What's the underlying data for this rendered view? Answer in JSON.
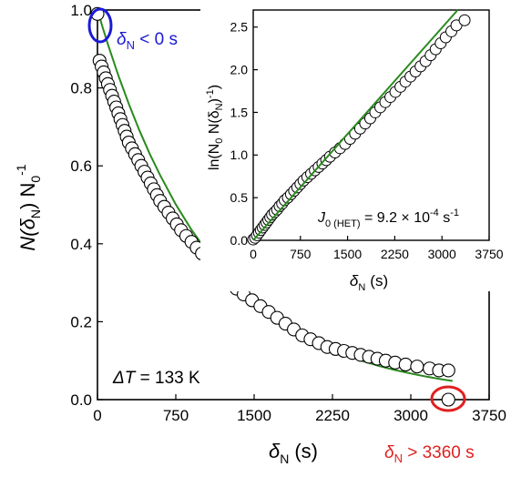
{
  "chart_data": [
    {
      "type": "scatter",
      "role": "main",
      "xlabel_sym": "δ",
      "xlabel_sub": "N",
      "xlabel_unit": "(s)",
      "ylabel_a": "N(δ",
      "ylabel_sub": "N",
      "ylabel_b": ") N",
      "ylabel_sub0": "0",
      "ylabel_sup": "-1",
      "xlim": [
        0,
        3750
      ],
      "ylim": [
        0.0,
        1.0
      ],
      "x_ticks": [
        "0",
        "750",
        "1500",
        "2250",
        "3000",
        "3750"
      ],
      "y_ticks": [
        "0.0",
        "0.2",
        "0.4",
        "0.6",
        "0.8",
        "1.0"
      ],
      "annotation_dt_a": "ΔT",
      "annotation_dt_b": " = 133 K",
      "annotation_left_sym": "δ",
      "annotation_left_sub": "N",
      "annotation_left_rest": " < 0 s",
      "annotation_left_color": "#1a1ad6",
      "annotation_right_sym": "δ",
      "annotation_right_sub": "N",
      "annotation_right_rest": " > 3360 s",
      "annotation_right_color": "#e02020",
      "marker_color": "#000000",
      "fit_color": "#2a8a1e",
      "points": [
        [
          0,
          0.99
        ],
        [
          20,
          0.87
        ],
        [
          40,
          0.855
        ],
        [
          60,
          0.84
        ],
        [
          80,
          0.825
        ],
        [
          100,
          0.81
        ],
        [
          120,
          0.795
        ],
        [
          140,
          0.78
        ],
        [
          160,
          0.765
        ],
        [
          180,
          0.75
        ],
        [
          200,
          0.735
        ],
        [
          220,
          0.72
        ],
        [
          240,
          0.705
        ],
        [
          260,
          0.69
        ],
        [
          280,
          0.675
        ],
        [
          300,
          0.66
        ],
        [
          330,
          0.645
        ],
        [
          360,
          0.63
        ],
        [
          390,
          0.615
        ],
        [
          420,
          0.6
        ],
        [
          450,
          0.585
        ],
        [
          480,
          0.57
        ],
        [
          510,
          0.555
        ],
        [
          540,
          0.54
        ],
        [
          570,
          0.525
        ],
        [
          600,
          0.51
        ],
        [
          640,
          0.495
        ],
        [
          680,
          0.48
        ],
        [
          720,
          0.465
        ],
        [
          760,
          0.45
        ],
        [
          800,
          0.435
        ],
        [
          850,
          0.42
        ],
        [
          900,
          0.405
        ],
        [
          950,
          0.39
        ],
        [
          1000,
          0.375
        ],
        [
          1050,
          0.36
        ],
        [
          1100,
          0.345
        ],
        [
          1150,
          0.33
        ],
        [
          1200,
          0.315
        ],
        [
          1260,
          0.3
        ],
        [
          1330,
          0.285
        ],
        [
          1400,
          0.27
        ],
        [
          1480,
          0.255
        ],
        [
          1560,
          0.24
        ],
        [
          1640,
          0.225
        ],
        [
          1720,
          0.21
        ],
        [
          1800,
          0.195
        ],
        [
          1880,
          0.18
        ],
        [
          1960,
          0.165
        ],
        [
          2040,
          0.155
        ],
        [
          2120,
          0.145
        ],
        [
          2200,
          0.135
        ],
        [
          2280,
          0.13
        ],
        [
          2360,
          0.125
        ],
        [
          2440,
          0.12
        ],
        [
          2520,
          0.115
        ],
        [
          2600,
          0.11
        ],
        [
          2680,
          0.105
        ],
        [
          2760,
          0.1
        ],
        [
          2850,
          0.095
        ],
        [
          2950,
          0.09
        ],
        [
          3060,
          0.085
        ],
        [
          3180,
          0.08
        ],
        [
          3270,
          0.075
        ],
        [
          3360,
          0.075
        ],
        [
          3360,
          0.0
        ]
      ],
      "fit_points": [
        [
          0,
          1.0
        ],
        [
          50,
          0.955
        ],
        [
          100,
          0.912
        ],
        [
          200,
          0.832
        ],
        [
          300,
          0.759
        ],
        [
          400,
          0.692
        ],
        [
          500,
          0.631
        ],
        [
          600,
          0.576
        ],
        [
          750,
          0.501
        ],
        [
          900,
          0.436
        ],
        [
          1050,
          0.38
        ],
        [
          1200,
          0.331
        ],
        [
          1350,
          0.288
        ],
        [
          1500,
          0.251
        ],
        [
          1650,
          0.219
        ],
        [
          1800,
          0.191
        ],
        [
          1950,
          0.167
        ],
        [
          2100,
          0.146
        ],
        [
          2250,
          0.128
        ],
        [
          2400,
          0.112
        ],
        [
          2550,
          0.098
        ],
        [
          2700,
          0.086
        ],
        [
          2850,
          0.076
        ],
        [
          3000,
          0.067
        ],
        [
          3150,
          0.059
        ],
        [
          3300,
          0.052
        ],
        [
          3400,
          0.048
        ]
      ]
    },
    {
      "type": "scatter",
      "role": "inset",
      "xlabel_sym": "δ",
      "xlabel_sub": "N",
      "xlabel_unit": "(s)",
      "ylabel_a": "ln(N",
      "ylabel_sub0": "0",
      "ylabel_b": " N(δ",
      "ylabel_sub": "N",
      "ylabel_c": ")",
      "ylabel_sup": "-1",
      "ylabel_d": ")",
      "xlim": [
        0,
        3750
      ],
      "ylim": [
        0.0,
        2.7
      ],
      "x_ticks": [
        "0",
        "750",
        "1500",
        "2250",
        "3000",
        "3750"
      ],
      "y_ticks": [
        "0.0",
        "0.5",
        "1.0",
        "1.5",
        "2.0",
        "2.5"
      ],
      "annotation_j_sym": "J",
      "annotation_j_sub": "0 (HET)",
      "annotation_j_rest": " = 9.2 × 10",
      "annotation_j_sup": "-4",
      "annotation_j_unit": " s",
      "annotation_j_unit_sup": "-1",
      "points": [
        [
          0,
          0.01
        ],
        [
          30,
          0.03
        ],
        [
          60,
          0.06
        ],
        [
          90,
          0.09
        ],
        [
          120,
          0.12
        ],
        [
          150,
          0.15
        ],
        [
          180,
          0.18
        ],
        [
          210,
          0.21
        ],
        [
          240,
          0.24
        ],
        [
          270,
          0.27
        ],
        [
          300,
          0.3
        ],
        [
          340,
          0.33
        ],
        [
          380,
          0.36
        ],
        [
          420,
          0.4
        ],
        [
          460,
          0.43
        ],
        [
          500,
          0.47
        ],
        [
          550,
          0.5
        ],
        [
          600,
          0.54
        ],
        [
          650,
          0.58
        ],
        [
          700,
          0.62
        ],
        [
          750,
          0.66
        ],
        [
          800,
          0.7
        ],
        [
          860,
          0.74
        ],
        [
          920,
          0.78
        ],
        [
          980,
          0.82
        ],
        [
          1040,
          0.86
        ],
        [
          1100,
          0.9
        ],
        [
          1160,
          0.94
        ],
        [
          1220,
          0.98
        ],
        [
          1300,
          1.03
        ],
        [
          1380,
          1.08
        ],
        [
          1460,
          1.13
        ],
        [
          1540,
          1.19
        ],
        [
          1620,
          1.25
        ],
        [
          1700,
          1.31
        ],
        [
          1780,
          1.37
        ],
        [
          1860,
          1.43
        ],
        [
          1940,
          1.5
        ],
        [
          2020,
          1.56
        ],
        [
          2100,
          1.62
        ],
        [
          2180,
          1.68
        ],
        [
          2260,
          1.74
        ],
        [
          2340,
          1.8
        ],
        [
          2420,
          1.86
        ],
        [
          2500,
          1.92
        ],
        [
          2580,
          1.98
        ],
        [
          2660,
          2.04
        ],
        [
          2740,
          2.1
        ],
        [
          2820,
          2.17
        ],
        [
          2900,
          2.24
        ],
        [
          2980,
          2.31
        ],
        [
          3060,
          2.38
        ],
        [
          3150,
          2.45
        ],
        [
          3230,
          2.52
        ],
        [
          3360,
          2.58
        ]
      ],
      "fit_line": [
        [
          0,
          0.0
        ],
        [
          3250,
          2.99
        ]
      ]
    }
  ]
}
